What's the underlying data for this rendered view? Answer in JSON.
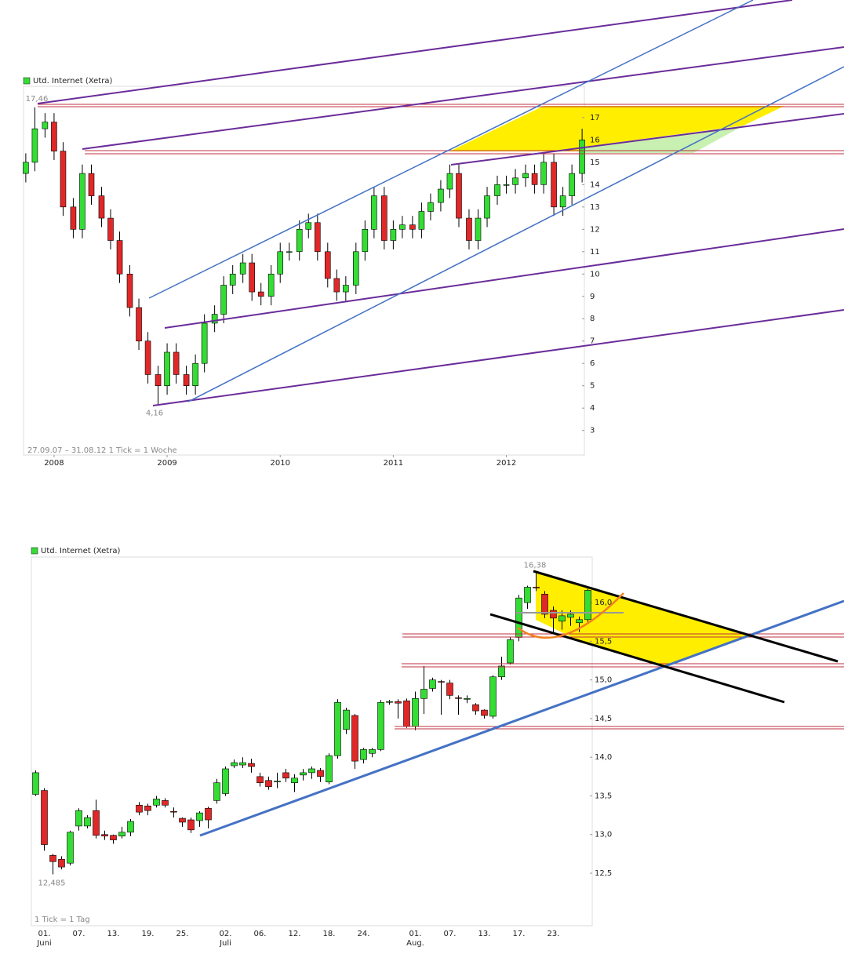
{
  "chart_data": [
    {
      "type": "candlestick",
      "series": [
        {
          "name": "Utd. Internet (Xetra)",
          "color": "#33dd33",
          "down_color": "#e02828",
          "open": [
            14.5,
            15.0,
            16.5,
            16.8,
            15.5,
            13.0,
            12.0,
            14.5,
            13.5,
            12.5,
            11.5,
            10.0,
            8.5,
            7.0,
            5.5,
            5.0,
            6.5,
            5.5,
            5.0,
            6.0,
            7.8,
            8.2,
            9.5,
            10.0,
            10.5,
            9.2,
            9.0,
            10.0,
            11.0,
            11.0,
            12.0,
            12.3,
            11.0,
            9.8,
            9.2,
            9.5,
            11.0,
            12.0,
            13.5,
            11.5,
            12.0,
            12.2,
            12.0,
            12.8,
            13.2,
            13.8,
            14.5,
            12.5,
            11.5,
            12.5,
            13.5,
            14.0,
            14.0,
            14.3,
            14.5,
            14.0,
            15.0,
            13.0,
            13.5,
            14.5
          ],
          "high": [
            15.4,
            17.46,
            17.2,
            17.2,
            15.9,
            13.4,
            14.9,
            14.9,
            13.9,
            12.9,
            11.9,
            10.4,
            8.9,
            7.4,
            5.9,
            6.9,
            6.9,
            5.9,
            6.4,
            8.2,
            8.6,
            9.9,
            10.4,
            10.9,
            10.9,
            9.6,
            10.4,
            11.4,
            11.4,
            12.4,
            12.7,
            12.7,
            11.4,
            10.2,
            9.9,
            11.4,
            12.4,
            13.9,
            13.9,
            12.4,
            12.6,
            12.6,
            13.2,
            13.6,
            14.2,
            14.9,
            14.9,
            12.9,
            12.9,
            13.9,
            14.4,
            14.4,
            14.7,
            14.9,
            14.9,
            15.4,
            15.4,
            13.9,
            14.9,
            16.5
          ],
          "low": [
            14.1,
            14.6,
            16.1,
            15.1,
            12.6,
            11.6,
            11.6,
            13.1,
            12.1,
            11.1,
            9.6,
            8.1,
            6.6,
            5.1,
            4.16,
            4.6,
            5.1,
            4.6,
            4.6,
            5.6,
            7.4,
            7.8,
            9.1,
            9.6,
            8.8,
            8.6,
            8.6,
            9.6,
            10.6,
            10.6,
            11.6,
            10.6,
            9.4,
            8.8,
            8.8,
            9.1,
            10.6,
            11.6,
            11.1,
            11.1,
            11.6,
            11.6,
            11.6,
            12.4,
            12.8,
            13.4,
            12.1,
            11.1,
            11.1,
            12.1,
            13.1,
            13.6,
            13.6,
            13.9,
            13.6,
            13.6,
            12.6,
            12.6,
            13.1,
            14.1
          ],
          "close": [
            15.0,
            16.5,
            16.8,
            15.5,
            13.0,
            12.0,
            14.5,
            13.5,
            12.5,
            11.5,
            10.0,
            8.5,
            7.0,
            5.5,
            5.0,
            6.5,
            5.5,
            5.0,
            6.0,
            7.8,
            8.2,
            9.5,
            10.0,
            10.5,
            9.2,
            9.0,
            10.0,
            11.0,
            11.0,
            12.0,
            12.3,
            11.0,
            9.8,
            9.2,
            9.5,
            11.0,
            12.0,
            13.5,
            11.5,
            12.0,
            12.2,
            12.0,
            12.8,
            13.2,
            13.8,
            14.5,
            12.5,
            11.5,
            12.5,
            13.5,
            14.0,
            14.0,
            14.3,
            14.5,
            14.0,
            15.0,
            13.0,
            13.5,
            14.5,
            16.0
          ]
        }
      ],
      "x": [
        2007.75,
        2007.83,
        2007.92,
        2008.0,
        2008.08,
        2008.17,
        2008.25,
        2008.33,
        2008.42,
        2008.5,
        2008.58,
        2008.67,
        2008.75,
        2008.83,
        2008.92,
        2009.0,
        2009.08,
        2009.17,
        2009.25,
        2009.33,
        2009.42,
        2009.5,
        2009.58,
        2009.67,
        2009.75,
        2009.83,
        2009.92,
        2010.0,
        2010.08,
        2010.17,
        2010.25,
        2010.33,
        2010.42,
        2010.5,
        2010.58,
        2010.67,
        2010.75,
        2010.83,
        2010.92,
        2011.0,
        2011.08,
        2011.17,
        2011.25,
        2011.33,
        2011.42,
        2011.5,
        2011.58,
        2011.67,
        2011.75,
        2011.83,
        2011.92,
        2012.0,
        2012.08,
        2012.17,
        2012.25,
        2012.33,
        2012.42,
        2012.5,
        2012.58,
        2012.67
      ],
      "xlim": [
        2007.73,
        2012.69
      ],
      "xticks": [
        2008,
        2009,
        2010,
        2011,
        2012
      ],
      "ylim": [
        1.9,
        18.4
      ],
      "yticks": [
        3,
        4,
        5,
        6,
        7,
        8,
        9,
        10,
        11,
        12,
        13,
        14,
        15,
        16,
        17
      ],
      "annotations": [
        {
          "value": 17.46,
          "label": "17,46"
        },
        {
          "value": 4.16,
          "label": "4,16"
        }
      ],
      "note": "27.09.07 – 31.08.12   1 Tick = 1 Woche"
    },
    {
      "type": "candlestick",
      "series": [
        {
          "name": "Utd. Internet (Xetra)",
          "color": "#33dd33",
          "down_color": "#e02828",
          "open": [
            13.52,
            13.57,
            12.73,
            12.68,
            12.63,
            13.11,
            13.11,
            13.31,
            13.0,
            12.99,
            12.98,
            13.03,
            13.38,
            13.37,
            13.38,
            13.44,
            13.3,
            13.21,
            13.19,
            13.18,
            13.34,
            13.44,
            13.53,
            13.89,
            13.9,
            13.92,
            13.75,
            13.7,
            13.68,
            13.8,
            13.67,
            13.77,
            13.8,
            13.83,
            13.68,
            14.02,
            14.36,
            14.54,
            13.97,
            14.05,
            14.1,
            14.71,
            14.72,
            14.73,
            14.4,
            14.76,
            14.89,
            14.98,
            14.96,
            14.77,
            14.76,
            14.68,
            14.61,
            14.53,
            15.04,
            15.22,
            15.55,
            16.0,
            16.2,
            16.11,
            15.9,
            15.76,
            15.81,
            15.74,
            15.78
          ],
          "high": [
            13.83,
            13.6,
            12.75,
            12.72,
            13.05,
            13.34,
            13.25,
            13.45,
            13.05,
            13.0,
            13.1,
            13.2,
            13.42,
            13.4,
            13.5,
            13.47,
            13.35,
            13.22,
            13.22,
            13.3,
            13.36,
            13.72,
            13.88,
            13.97,
            14.0,
            13.98,
            13.8,
            13.75,
            13.8,
            13.85,
            13.78,
            13.85,
            13.88,
            13.86,
            14.05,
            14.75,
            14.64,
            14.56,
            14.12,
            14.12,
            14.74,
            14.74,
            14.75,
            14.76,
            14.85,
            15.18,
            15.03,
            15.0,
            15.0,
            14.8,
            14.8,
            14.7,
            14.62,
            15.06,
            15.3,
            15.55,
            16.1,
            16.22,
            16.38,
            16.15,
            15.95,
            15.9,
            15.9,
            15.82,
            16.18
          ],
          "low": [
            13.5,
            12.79,
            12.485,
            12.55,
            12.6,
            13.05,
            13.08,
            12.95,
            12.93,
            12.88,
            12.95,
            12.98,
            13.25,
            13.25,
            13.35,
            13.35,
            13.22,
            13.1,
            13.02,
            13.1,
            13.08,
            13.4,
            13.5,
            13.86,
            13.86,
            13.8,
            13.62,
            13.58,
            13.6,
            13.68,
            13.55,
            13.7,
            13.72,
            13.68,
            13.65,
            13.98,
            14.3,
            13.85,
            13.92,
            14.0,
            14.08,
            14.68,
            14.5,
            14.38,
            14.35,
            14.56,
            14.85,
            14.55,
            14.75,
            14.55,
            14.7,
            14.55,
            14.5,
            14.5,
            15.0,
            15.2,
            15.5,
            15.92,
            16.15,
            15.8,
            15.6,
            15.65,
            15.7,
            15.62,
            15.75
          ],
          "close": [
            13.8,
            12.87,
            12.65,
            12.58,
            13.03,
            13.31,
            13.22,
            12.99,
            12.98,
            12.93,
            13.03,
            13.17,
            13.29,
            13.31,
            13.46,
            13.38,
            13.29,
            13.16,
            13.06,
            13.28,
            13.19,
            13.67,
            13.85,
            13.93,
            13.93,
            13.88,
            13.67,
            13.62,
            13.69,
            13.73,
            13.73,
            13.8,
            13.85,
            13.75,
            14.02,
            14.71,
            14.61,
            13.95,
            14.1,
            14.1,
            14.71,
            14.72,
            14.7,
            14.4,
            14.76,
            14.88,
            15.0,
            14.97,
            14.8,
            14.76,
            14.76,
            14.6,
            14.54,
            15.04,
            15.18,
            15.52,
            16.06,
            16.2,
            16.19,
            15.85,
            15.8,
            15.83,
            15.85,
            15.78,
            16.16
          ]
        }
      ],
      "categories": [
        null,
        "01.",
        null,
        null,
        null,
        "07.",
        null,
        null,
        null,
        "13.",
        null,
        null,
        null,
        "19.",
        null,
        null,
        null,
        "25.",
        null,
        null,
        null,
        null,
        "02.",
        null,
        null,
        null,
        "06.",
        null,
        null,
        null,
        "12.",
        null,
        null,
        null,
        "18.",
        null,
        null,
        null,
        "24.",
        null,
        null,
        null,
        null,
        null,
        "01.",
        null,
        null,
        null,
        "07.",
        null,
        null,
        null,
        "13.",
        null,
        null,
        null,
        "17.",
        null,
        null,
        null,
        "23.",
        null,
        null,
        null,
        null
      ],
      "category_groups": [
        null,
        "Juni",
        null,
        null,
        null,
        null,
        null,
        null,
        null,
        null,
        null,
        null,
        null,
        null,
        null,
        null,
        null,
        null,
        null,
        null,
        null,
        null,
        "Juli",
        null,
        null,
        null,
        null,
        null,
        null,
        null,
        null,
        null,
        null,
        null,
        null,
        null,
        null,
        null,
        null,
        null,
        null,
        null,
        null,
        null,
        "Aug.",
        null,
        null,
        null,
        null,
        null,
        null,
        null,
        null,
        null,
        null,
        null,
        null,
        null,
        null,
        null,
        null,
        null,
        null,
        null,
        null
      ],
      "ylim": [
        11.82,
        16.59
      ],
      "yticks": [
        {
          "value": 12.5,
          "label": "12,5"
        },
        {
          "value": 13,
          "label": "13,0"
        },
        {
          "value": 13.5,
          "label": "13,5"
        },
        {
          "value": 14,
          "label": "14,0"
        },
        {
          "value": 14.5,
          "label": "14,5"
        },
        {
          "value": 15,
          "label": "15,0"
        },
        {
          "value": 15.5,
          "label": "15,5"
        },
        {
          "value": 16,
          "label": "16,0"
        }
      ],
      "annotations": [
        {
          "value": 16.38,
          "label": "16,38"
        },
        {
          "value": 12.485,
          "label": "12,485"
        }
      ],
      "note": "1 Tick = 1 Tag"
    }
  ]
}
